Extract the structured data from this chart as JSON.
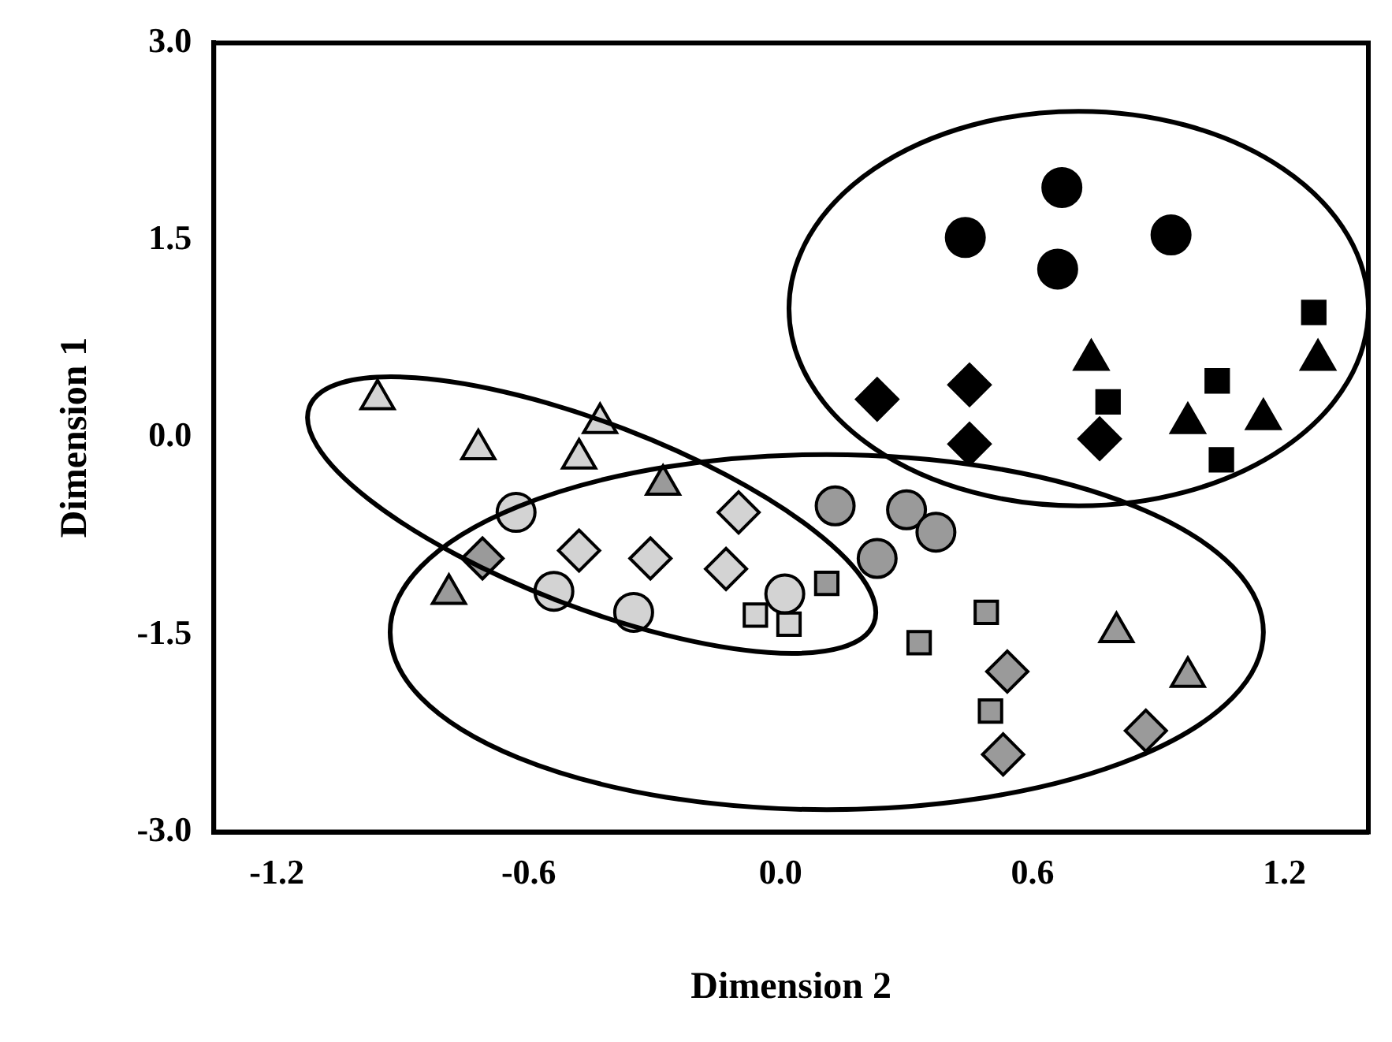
{
  "chart_data": {
    "type": "scatter",
    "xlabel": "Dimension 2",
    "ylabel": "Dimension 1",
    "xlim": [
      -1.35,
      1.4
    ],
    "ylim": [
      -3.0,
      3.0
    ],
    "xticks": [
      {
        "value": -1.2,
        "label": "-1.2"
      },
      {
        "value": -0.6,
        "label": "-0.6"
      },
      {
        "value": 0,
        "label": "0.0"
      },
      {
        "value": 0.6,
        "label": "0.6"
      },
      {
        "value": 1.2,
        "label": "1.2"
      }
    ],
    "yticks": [
      {
        "value": -3,
        "label": "-3.0"
      },
      {
        "value": -1.5,
        "label": "-1.5"
      },
      {
        "value": 0,
        "label": "0.0"
      },
      {
        "value": 1.5,
        "label": "1.5"
      },
      {
        "value": 3,
        "label": "3.0"
      }
    ],
    "grid": false,
    "legend": false,
    "series": [
      {
        "color": "#000000",
        "marker": "circle",
        "x": [
          0.67,
          0.44,
          0.66,
          0.93
        ],
        "values": [
          1.9,
          1.52,
          1.28,
          1.54
        ]
      },
      {
        "color": "#000000",
        "marker": "square",
        "x": [
          1.27,
          1.04,
          0.78,
          1.05
        ],
        "values": [
          0.95,
          0.43,
          0.27,
          -0.17
        ]
      },
      {
        "color": "#000000",
        "marker": "triangle",
        "x": [
          0.74,
          1.28,
          0.97,
          1.15
        ],
        "values": [
          0.59,
          0.59,
          0.11,
          0.14
        ]
      },
      {
        "color": "#000000",
        "marker": "diamond",
        "x": [
          0.23,
          0.45,
          0.45,
          0.76
        ],
        "values": [
          0.29,
          0.4,
          -0.05,
          -0.01
        ]
      },
      {
        "color": "#d3d3d3",
        "marker": "triangle",
        "x": [
          -0.96,
          -0.72,
          -0.43,
          -0.48
        ],
        "values": [
          0.29,
          -0.09,
          0.11,
          -0.16
        ]
      },
      {
        "color": "#d3d3d3",
        "marker": "circle",
        "x": [
          -0.63,
          -0.54,
          -0.35,
          0.01
        ],
        "values": [
          -0.57,
          -1.17,
          -1.33,
          -1.19
        ]
      },
      {
        "color": "#d3d3d3",
        "marker": "diamond",
        "x": [
          -0.1,
          -0.48,
          -0.31,
          -0.13
        ],
        "values": [
          -0.57,
          -0.86,
          -0.92,
          -1.0
        ]
      },
      {
        "color": "#d3d3d3",
        "marker": "square",
        "x": [
          -0.06,
          0.02
        ],
        "values": [
          -1.35,
          -1.42
        ]
      },
      {
        "color": "#9a9a9a",
        "marker": "circle",
        "x": [
          0.13,
          0.3,
          0.37,
          0.23
        ],
        "values": [
          -0.52,
          -0.55,
          -0.72,
          -0.92
        ]
      },
      {
        "color": "#9a9a9a",
        "marker": "square",
        "x": [
          0.11,
          0.49,
          0.33,
          0.5
        ],
        "values": [
          -1.11,
          -1.33,
          -1.56,
          -2.08
        ]
      },
      {
        "color": "#9a9a9a",
        "marker": "triangle",
        "x": [
          -0.28,
          -0.79,
          0.8,
          0.97
        ],
        "values": [
          -0.36,
          -1.19,
          -1.48,
          -1.82
        ]
      },
      {
        "color": "#9a9a9a",
        "marker": "diamond",
        "x": [
          -0.71,
          0.54,
          0.87,
          0.53
        ],
        "values": [
          -0.92,
          -1.78,
          -2.23,
          -2.41
        ]
      }
    ]
  }
}
